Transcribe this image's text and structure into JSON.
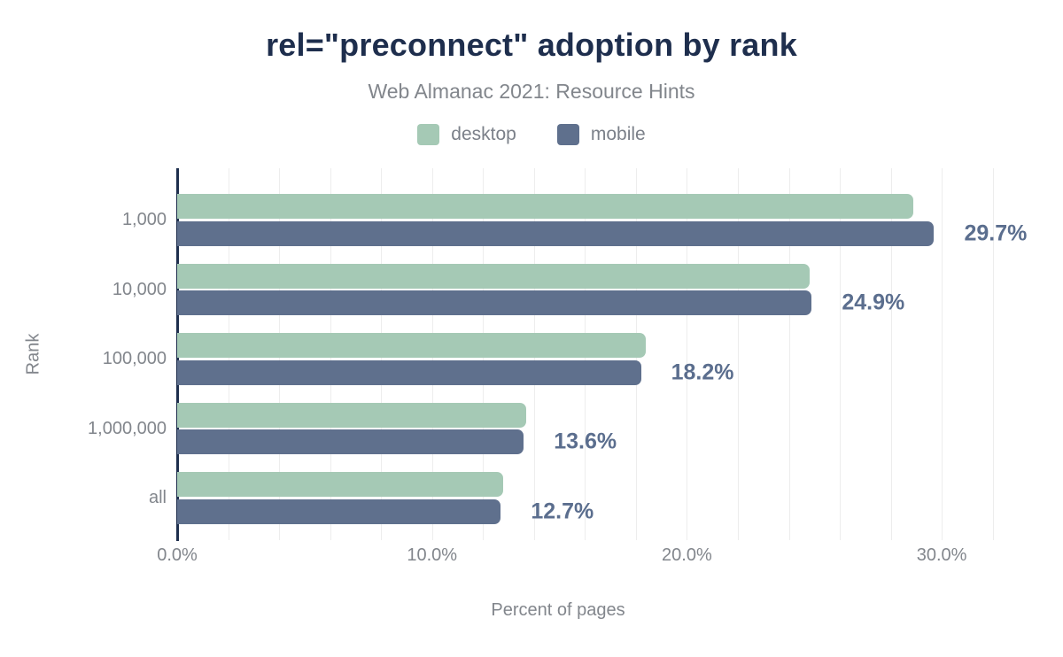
{
  "chart_data": {
    "type": "bar",
    "orientation": "horizontal",
    "title": "rel=\"preconnect\" adoption by rank",
    "subtitle": "Web Almanac 2021: Resource Hints",
    "categories": [
      "1,000",
      "10,000",
      "100,000",
      "1,000,000",
      "all"
    ],
    "series": [
      {
        "name": "desktop",
        "color": "#a5c9b5",
        "values": [
          28.9,
          24.8,
          18.4,
          13.7,
          12.8
        ]
      },
      {
        "name": "mobile",
        "color": "#5f708d",
        "values": [
          29.7,
          24.9,
          18.2,
          13.6,
          12.7
        ]
      }
    ],
    "data_labels": [
      "29.7%",
      "24.9%",
      "18.2%",
      "13.6%",
      "12.7%"
    ],
    "data_label_series": "mobile",
    "xlabel": "Percent of pages",
    "ylabel": "Rank",
    "x_ticks": [
      {
        "label": "0.0%",
        "value": 0
      },
      {
        "label": "10.0%",
        "value": 10
      },
      {
        "label": "20.0%",
        "value": 20
      },
      {
        "label": "30.0%",
        "value": 30
      }
    ],
    "xlim": [
      0,
      32.5
    ],
    "gridline_step_percent": 2,
    "grid": true,
    "legend_position": "top",
    "colors": {
      "background": "#ffffff",
      "title": "#1e2e4d",
      "axis_line": "#1e2e4d",
      "text_gray": "#82868c",
      "value_label": "#5b6e8e",
      "gridline": "#ededed"
    }
  }
}
